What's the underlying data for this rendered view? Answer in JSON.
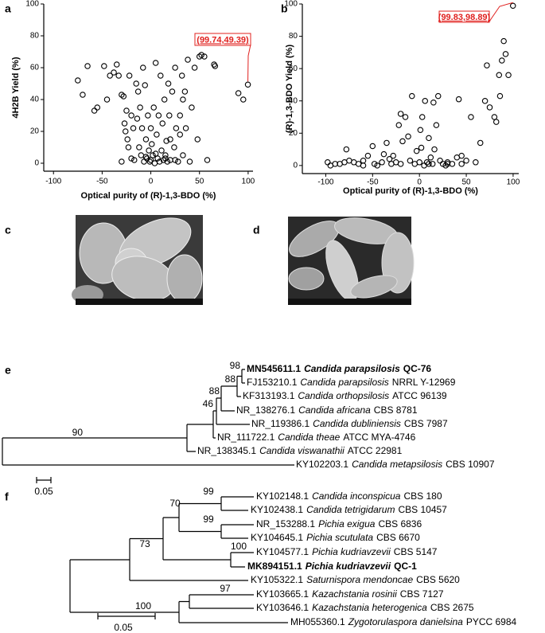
{
  "panels": [
    "a",
    "b",
    "c",
    "d",
    "e",
    "f"
  ],
  "chart_data": [
    {
      "type": "scatter",
      "y_label": "4H2B Yield (%)",
      "x_label": "Optical purity of (R)-1,3-BDO (%)",
      "xlim": [
        -110,
        105
      ],
      "ylim": [
        -5,
        100
      ],
      "xticks": [
        -100,
        -50,
        0,
        50,
        100
      ],
      "yticks": [
        0,
        20,
        40,
        60,
        80,
        100
      ],
      "annotation": "(99.74,49.39)",
      "color": "#000000",
      "x": [
        -75,
        -70,
        -65,
        -58,
        -55,
        -48,
        -45,
        -42,
        -38,
        -35,
        -33,
        -30,
        -28,
        -27,
        -26,
        -25,
        -24,
        -23,
        -22,
        -20,
        -18,
        -17,
        -15,
        -14,
        -13,
        -12,
        -11,
        -10,
        -9,
        -8,
        -7,
        -6,
        -5,
        -4,
        -3,
        -2,
        -1,
        0,
        0,
        1,
        2,
        3,
        4,
        5,
        6,
        7,
        8,
        9,
        10,
        11,
        12,
        13,
        14,
        15,
        16,
        17,
        18,
        19,
        20,
        22,
        24,
        25,
        26,
        28,
        30,
        32,
        33,
        35,
        36,
        38,
        40,
        42,
        45,
        48,
        50,
        52,
        55,
        58,
        65,
        66,
        90,
        95,
        -30,
        -20,
        20,
        25,
        30,
        33,
        -5,
        5,
        15,
        99.74
      ],
      "values": [
        52,
        43,
        61,
        33,
        35,
        61,
        40,
        55,
        57,
        62,
        55,
        43,
        42,
        25,
        20,
        33,
        15,
        10,
        55,
        30,
        22,
        2,
        50,
        28,
        45,
        10,
        35,
        5,
        22,
        60,
        1,
        49,
        15,
        3,
        30,
        8,
        1,
        22,
        2,
        12,
        5,
        35,
        0,
        63,
        18,
        3,
        30,
        1,
        55,
        8,
        25,
        2,
        40,
        5,
        14,
        1,
        50,
        30,
        2,
        45,
        10,
        60,
        22,
        1,
        30,
        55,
        5,
        45,
        22,
        65,
        1,
        35,
        60,
        15,
        67,
        68,
        67,
        2,
        62,
        61,
        44,
        40,
        1,
        3,
        15,
        2,
        18,
        40,
        4,
        6,
        3,
        49.39
      ]
    },
    {
      "type": "scatter",
      "y_label": "(R)-1,3-BDO Yield (%)",
      "x_label": "Optical purity of (R)-1,3-BDO (%)",
      "xlim": [
        -125,
        106
      ],
      "ylim": [
        -5,
        100
      ],
      "xticks": [
        -100,
        -50,
        0,
        50,
        100
      ],
      "yticks": [
        0,
        20,
        40,
        60,
        80,
        100
      ],
      "annotation": "(99.83,98.89)",
      "color": "#000000",
      "x": [
        -98,
        -95,
        -90,
        -85,
        -80,
        -78,
        -75,
        -70,
        -65,
        -60,
        -55,
        -50,
        -48,
        -45,
        -40,
        -38,
        -35,
        -32,
        -30,
        -28,
        -25,
        -22,
        -20,
        -18,
        -15,
        -12,
        -10,
        -8,
        -5,
        -3,
        0,
        1,
        2,
        3,
        5,
        6,
        8,
        10,
        12,
        14,
        15,
        16,
        18,
        20,
        22,
        25,
        28,
        30,
        35,
        40,
        42,
        45,
        50,
        55,
        60,
        65,
        70,
        72,
        75,
        80,
        82,
        85,
        86,
        88,
        90,
        92,
        95,
        -60,
        -20,
        10,
        30,
        45,
        99.83
      ],
      "values": [
        2,
        0,
        1,
        1,
        2,
        10,
        3,
        2,
        1,
        3,
        6,
        12,
        1,
        0,
        2,
        7,
        14,
        4,
        1,
        6,
        2,
        25,
        32,
        15,
        30,
        18,
        3,
        43,
        1,
        9,
        2,
        22,
        11,
        30,
        0,
        40,
        2,
        17,
        5,
        1,
        39,
        10,
        25,
        43,
        3,
        1,
        0,
        2,
        1,
        5,
        41,
        6,
        3,
        30,
        2,
        14,
        40,
        62,
        36,
        30,
        27,
        56,
        43,
        65,
        77,
        69,
        56,
        0,
        1,
        1,
        1,
        1,
        98.89
      ]
    }
  ],
  "tree_e": {
    "leaves": [
      {
        "accession": "MN545611.1",
        "species": "Candida parapsilosis",
        "strain": "QC-76",
        "bold": true
      },
      {
        "accession": "FJ153210.1",
        "species": "Candida parapsilosis",
        "strain": "NRRL Y-12969"
      },
      {
        "accession": "KF313193.1",
        "species": "Candida orthopsilosis",
        "strain": "ATCC 96139"
      },
      {
        "accession": "NR_138276.1",
        "species": "Candida africana",
        "strain": "CBS 8781"
      },
      {
        "accession": "NR_119386.1",
        "species": "Candida dubliniensis",
        "strain": "CBS 7987"
      },
      {
        "accession": "NR_111722.1",
        "species": "Candida theae",
        "strain": "ATCC MYA-4746"
      },
      {
        "accession": "NR_138345.1",
        "species": "Candida viswanathii",
        "strain": "ATCC 22981"
      },
      {
        "accession": "KY102203.1",
        "species": "Candida metapsilosis",
        "strain": "CBS 10907"
      }
    ],
    "bootstrap": [
      98,
      88,
      88,
      46,
      90
    ],
    "scale": "0.05"
  },
  "tree_f": {
    "leaves": [
      {
        "accession": "KY102148.1",
        "species": "Candida inconspicua",
        "strain": "CBS 180"
      },
      {
        "accession": "KY102438.1",
        "species": "Candida tetrigidarum",
        "strain": "CBS 10457"
      },
      {
        "accession": "NR_153288.1",
        "species": "Pichia exigua",
        "strain": "CBS 6836"
      },
      {
        "accession": "KY104645.1",
        "species": "Pichia scutulata",
        "strain": "CBS 6670"
      },
      {
        "accession": "KY104577.1",
        "species": "Pichia kudriavzevii",
        "strain": "CBS 5147"
      },
      {
        "accession": "MK894151.1",
        "species": "Pichia kudriavzevii",
        "strain": "QC-1",
        "bold": true
      },
      {
        "accession": "KY105322.1",
        "species": "Saturnispora mendoncae",
        "strain": "CBS 5620"
      },
      {
        "accession": "KY103665.1",
        "species": "Kazachstania rosinii",
        "strain": "CBS 7127"
      },
      {
        "accession": "KY103646.1",
        "species": "Kazachstania heterogenica",
        "strain": "CBS 2675"
      },
      {
        "accession": "MH055360.1",
        "species": "Zygotorulaspora danielsina",
        "strain": "PYCC 6984"
      }
    ],
    "bootstrap": [
      99,
      99,
      70,
      100,
      73,
      97,
      100
    ],
    "scale": "0.05"
  }
}
